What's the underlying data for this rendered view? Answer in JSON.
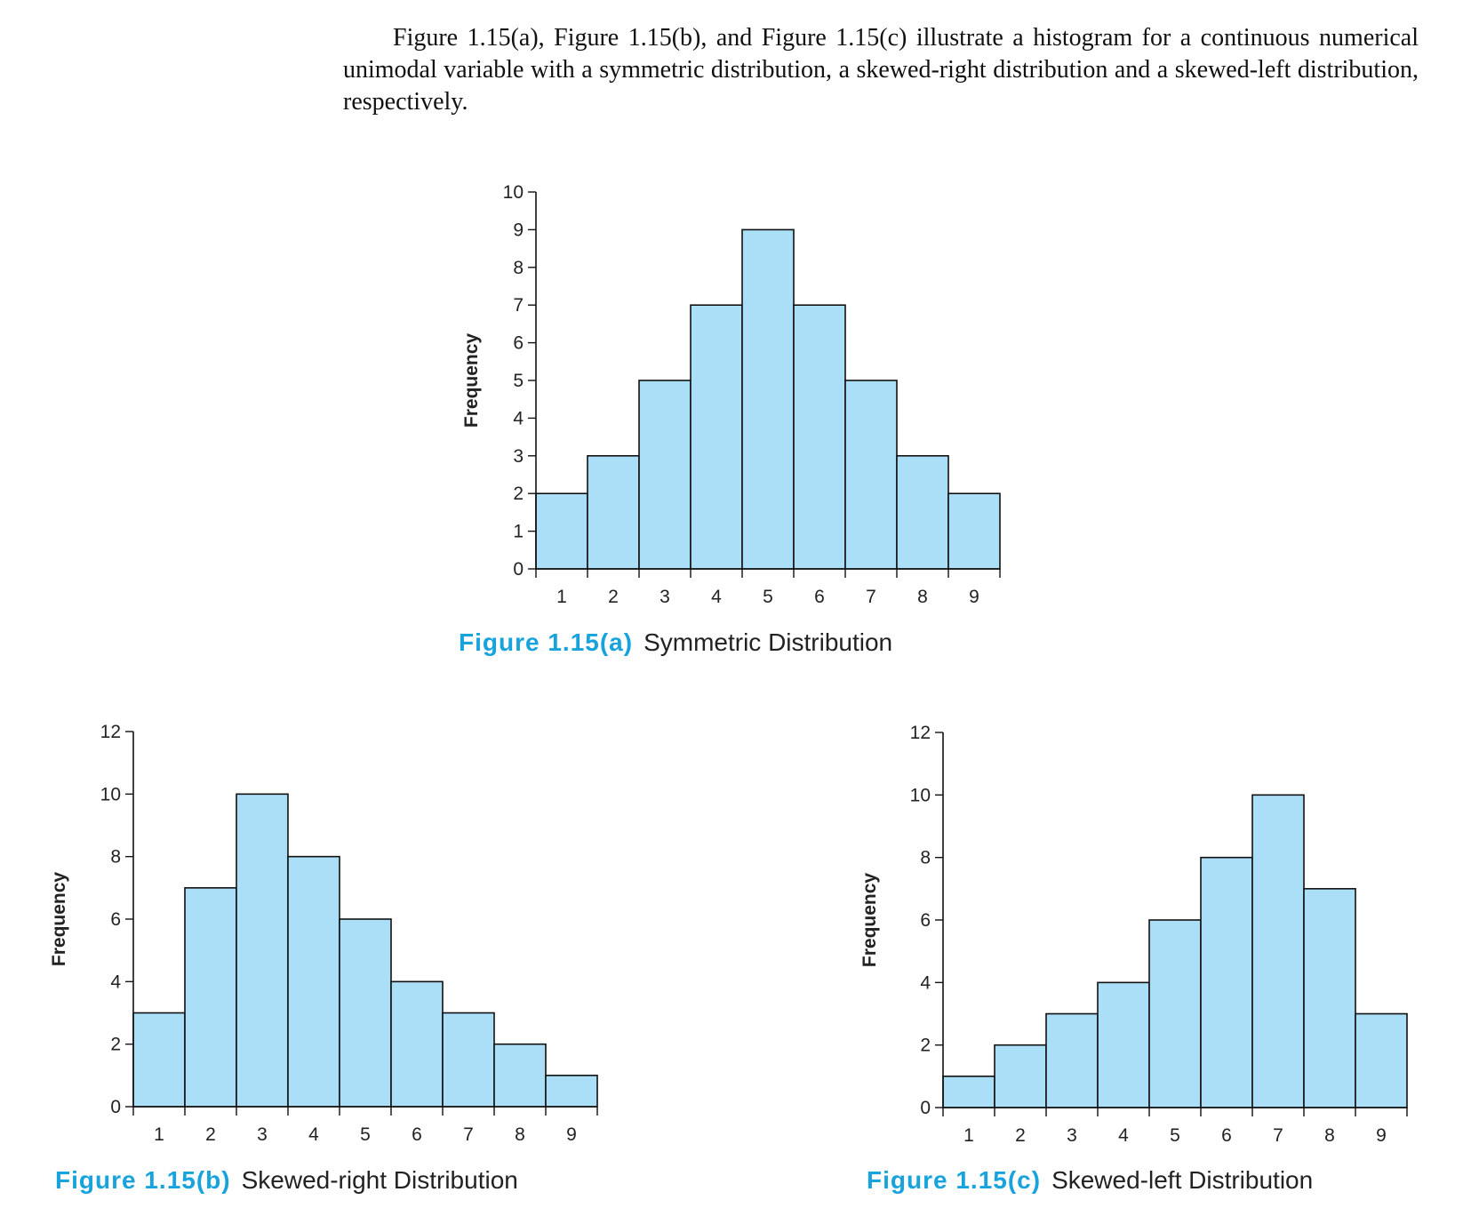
{
  "intro_text": "Figure 1.15(a), Figure 1.15(b), and Figure 1.15(c) illustrate a histogram for a continuous numerical unimodal variable with a symmetric distribution, a skewed-right distribution and a skewed-left distribution, respectively.",
  "colors": {
    "bar_fill": "#abdff8",
    "bar_stroke": "#111111",
    "caption_accent": "#19a3dc"
  },
  "chart_data": [
    {
      "type": "bar",
      "figure_label": "Figure 1.15(a)",
      "title": "Symmetric Distribution",
      "xlabel": "",
      "ylabel": "Frequency",
      "categories": [
        "1",
        "2",
        "3",
        "4",
        "5",
        "6",
        "7",
        "8",
        "9"
      ],
      "values": [
        2,
        3,
        5,
        7,
        9,
        7,
        5,
        3,
        2
      ],
      "ylim": [
        0,
        10
      ],
      "yticks": [
        0,
        1,
        2,
        3,
        4,
        5,
        6,
        7,
        8,
        9,
        10
      ],
      "grid": false
    },
    {
      "type": "bar",
      "figure_label": "Figure 1.15(b)",
      "title": "Skewed-right Distribution",
      "xlabel": "",
      "ylabel": "Frequency",
      "categories": [
        "1",
        "2",
        "3",
        "4",
        "5",
        "6",
        "7",
        "8",
        "9"
      ],
      "values": [
        3,
        7,
        10,
        8,
        6,
        4,
        3,
        2,
        1
      ],
      "ylim": [
        0,
        12
      ],
      "yticks": [
        0,
        2,
        4,
        6,
        8,
        10,
        12
      ],
      "grid": false
    },
    {
      "type": "bar",
      "figure_label": "Figure 1.15(c)",
      "title": "Skewed-left Distribution",
      "xlabel": "",
      "ylabel": "Frequency",
      "categories": [
        "1",
        "2",
        "3",
        "4",
        "5",
        "6",
        "7",
        "8",
        "9"
      ],
      "values": [
        1,
        2,
        3,
        4,
        6,
        8,
        10,
        7,
        3
      ],
      "ylim": [
        0,
        12
      ],
      "yticks": [
        0,
        2,
        4,
        6,
        8,
        10,
        12
      ],
      "grid": false
    }
  ]
}
